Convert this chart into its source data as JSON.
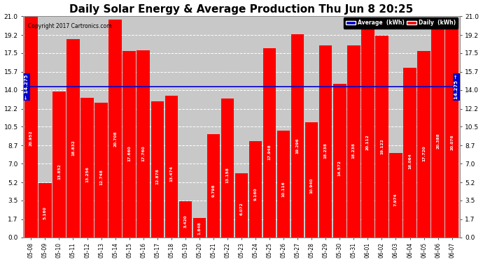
{
  "title": "Daily Solar Energy & Average Production Thu Jun 8 20:25",
  "copyright": "Copyright 2017 Cartronics.com",
  "categories": [
    "05-08",
    "05-09",
    "05-10",
    "05-11",
    "05-12",
    "05-13",
    "05-14",
    "05-15",
    "05-16",
    "05-17",
    "05-18",
    "05-19",
    "05-20",
    "05-21",
    "05-22",
    "05-23",
    "05-24",
    "05-25",
    "05-26",
    "05-27",
    "05-28",
    "05-29",
    "05-30",
    "05-31",
    "06-01",
    "06-02",
    "06-03",
    "06-04",
    "06-05",
    "06-06",
    "06-07"
  ],
  "values": [
    20.952,
    5.16,
    13.852,
    18.832,
    13.256,
    12.748,
    20.708,
    17.66,
    17.76,
    12.878,
    13.474,
    3.42,
    1.848,
    9.798,
    13.158,
    6.072,
    9.16,
    17.948,
    10.116,
    19.296,
    10.94,
    18.238,
    14.572,
    18.238,
    20.112,
    19.122,
    7.974,
    16.064,
    17.72,
    20.388,
    20.076
  ],
  "average": 14.275,
  "bar_color": "#ff0000",
  "average_line_color": "#0000cd",
  "background_color": "#ffffff",
  "plot_background": "#c8c8c8",
  "grid_color": "#ffffff",
  "yticks": [
    0.0,
    1.7,
    3.5,
    5.2,
    7.0,
    8.7,
    10.5,
    12.2,
    14.0,
    15.7,
    17.5,
    19.2,
    21.0
  ],
  "ylim": [
    0,
    21.0
  ],
  "title_fontsize": 11,
  "legend_average_color": "#0000cd",
  "legend_daily_color": "#ff0000"
}
